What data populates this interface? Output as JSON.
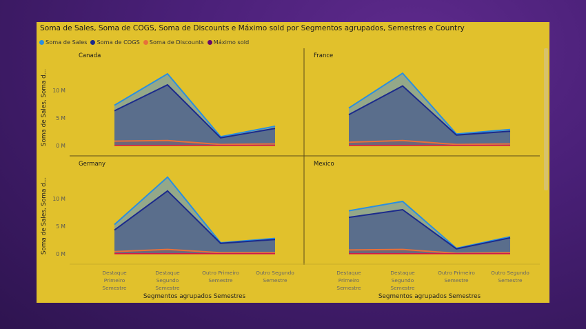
{
  "chart_data": {
    "type": "area",
    "title": "Soma de Sales, Soma de COGS, Soma de Discounts e Máximo sold por Segmentos agrupados, Semestres e Country",
    "xlabel": "Segmentos agrupados Semestres",
    "ylabel": "Soma de Sales, Soma d...",
    "categories": [
      [
        "Destaque",
        "Primeiro",
        "Semestre"
      ],
      [
        "Destaque",
        "Segundo",
        "Semestre"
      ],
      [
        "Outro Primeiro",
        "Semestre"
      ],
      [
        "Outro Segundo",
        "Semestre"
      ]
    ],
    "yticks": [
      "0 M",
      "5 M",
      "10 M"
    ],
    "ylim": [
      0,
      15
    ],
    "legend_placement": "top-left",
    "series": [
      {
        "name": "Soma de  Sales",
        "color": "#2a8fe0"
      },
      {
        "name": "Soma de COGS",
        "color": "#1b2a8c"
      },
      {
        "name": "Soma de Discounts",
        "color": "#e8703a"
      },
      {
        "name": "Máximo sold",
        "color": "#6a0a6a"
      }
    ],
    "facets": [
      {
        "country": "Canada",
        "sales": [
          7.3,
          13.0,
          1.6,
          3.5
        ],
        "cogs": [
          6.3,
          11.0,
          1.4,
          3.1
        ],
        "discounts": [
          0.8,
          0.9,
          0.2,
          0.3
        ],
        "sold": [
          0.02,
          0.02,
          0.02,
          0.02
        ]
      },
      {
        "country": "France",
        "sales": [
          6.8,
          13.1,
          2.1,
          2.9
        ],
        "cogs": [
          5.6,
          10.8,
          1.9,
          2.6
        ],
        "discounts": [
          0.6,
          0.9,
          0.2,
          0.3
        ],
        "sold": [
          0.02,
          0.02,
          0.02,
          0.02
        ]
      },
      {
        "country": "Germany",
        "sales": [
          5.3,
          13.9,
          2.0,
          2.8
        ],
        "cogs": [
          4.3,
          11.4,
          1.9,
          2.6
        ],
        "discounts": [
          0.4,
          0.8,
          0.2,
          0.2
        ],
        "sold": [
          0.02,
          0.02,
          0.02,
          0.02
        ]
      },
      {
        "country": "Mexico",
        "sales": [
          7.8,
          9.5,
          1.0,
          3.1
        ],
        "cogs": [
          6.6,
          8.0,
          0.9,
          2.9
        ],
        "discounts": [
          0.7,
          0.8,
          0.1,
          0.2
        ],
        "sold": [
          0.02,
          0.02,
          0.02,
          0.02
        ]
      }
    ]
  }
}
